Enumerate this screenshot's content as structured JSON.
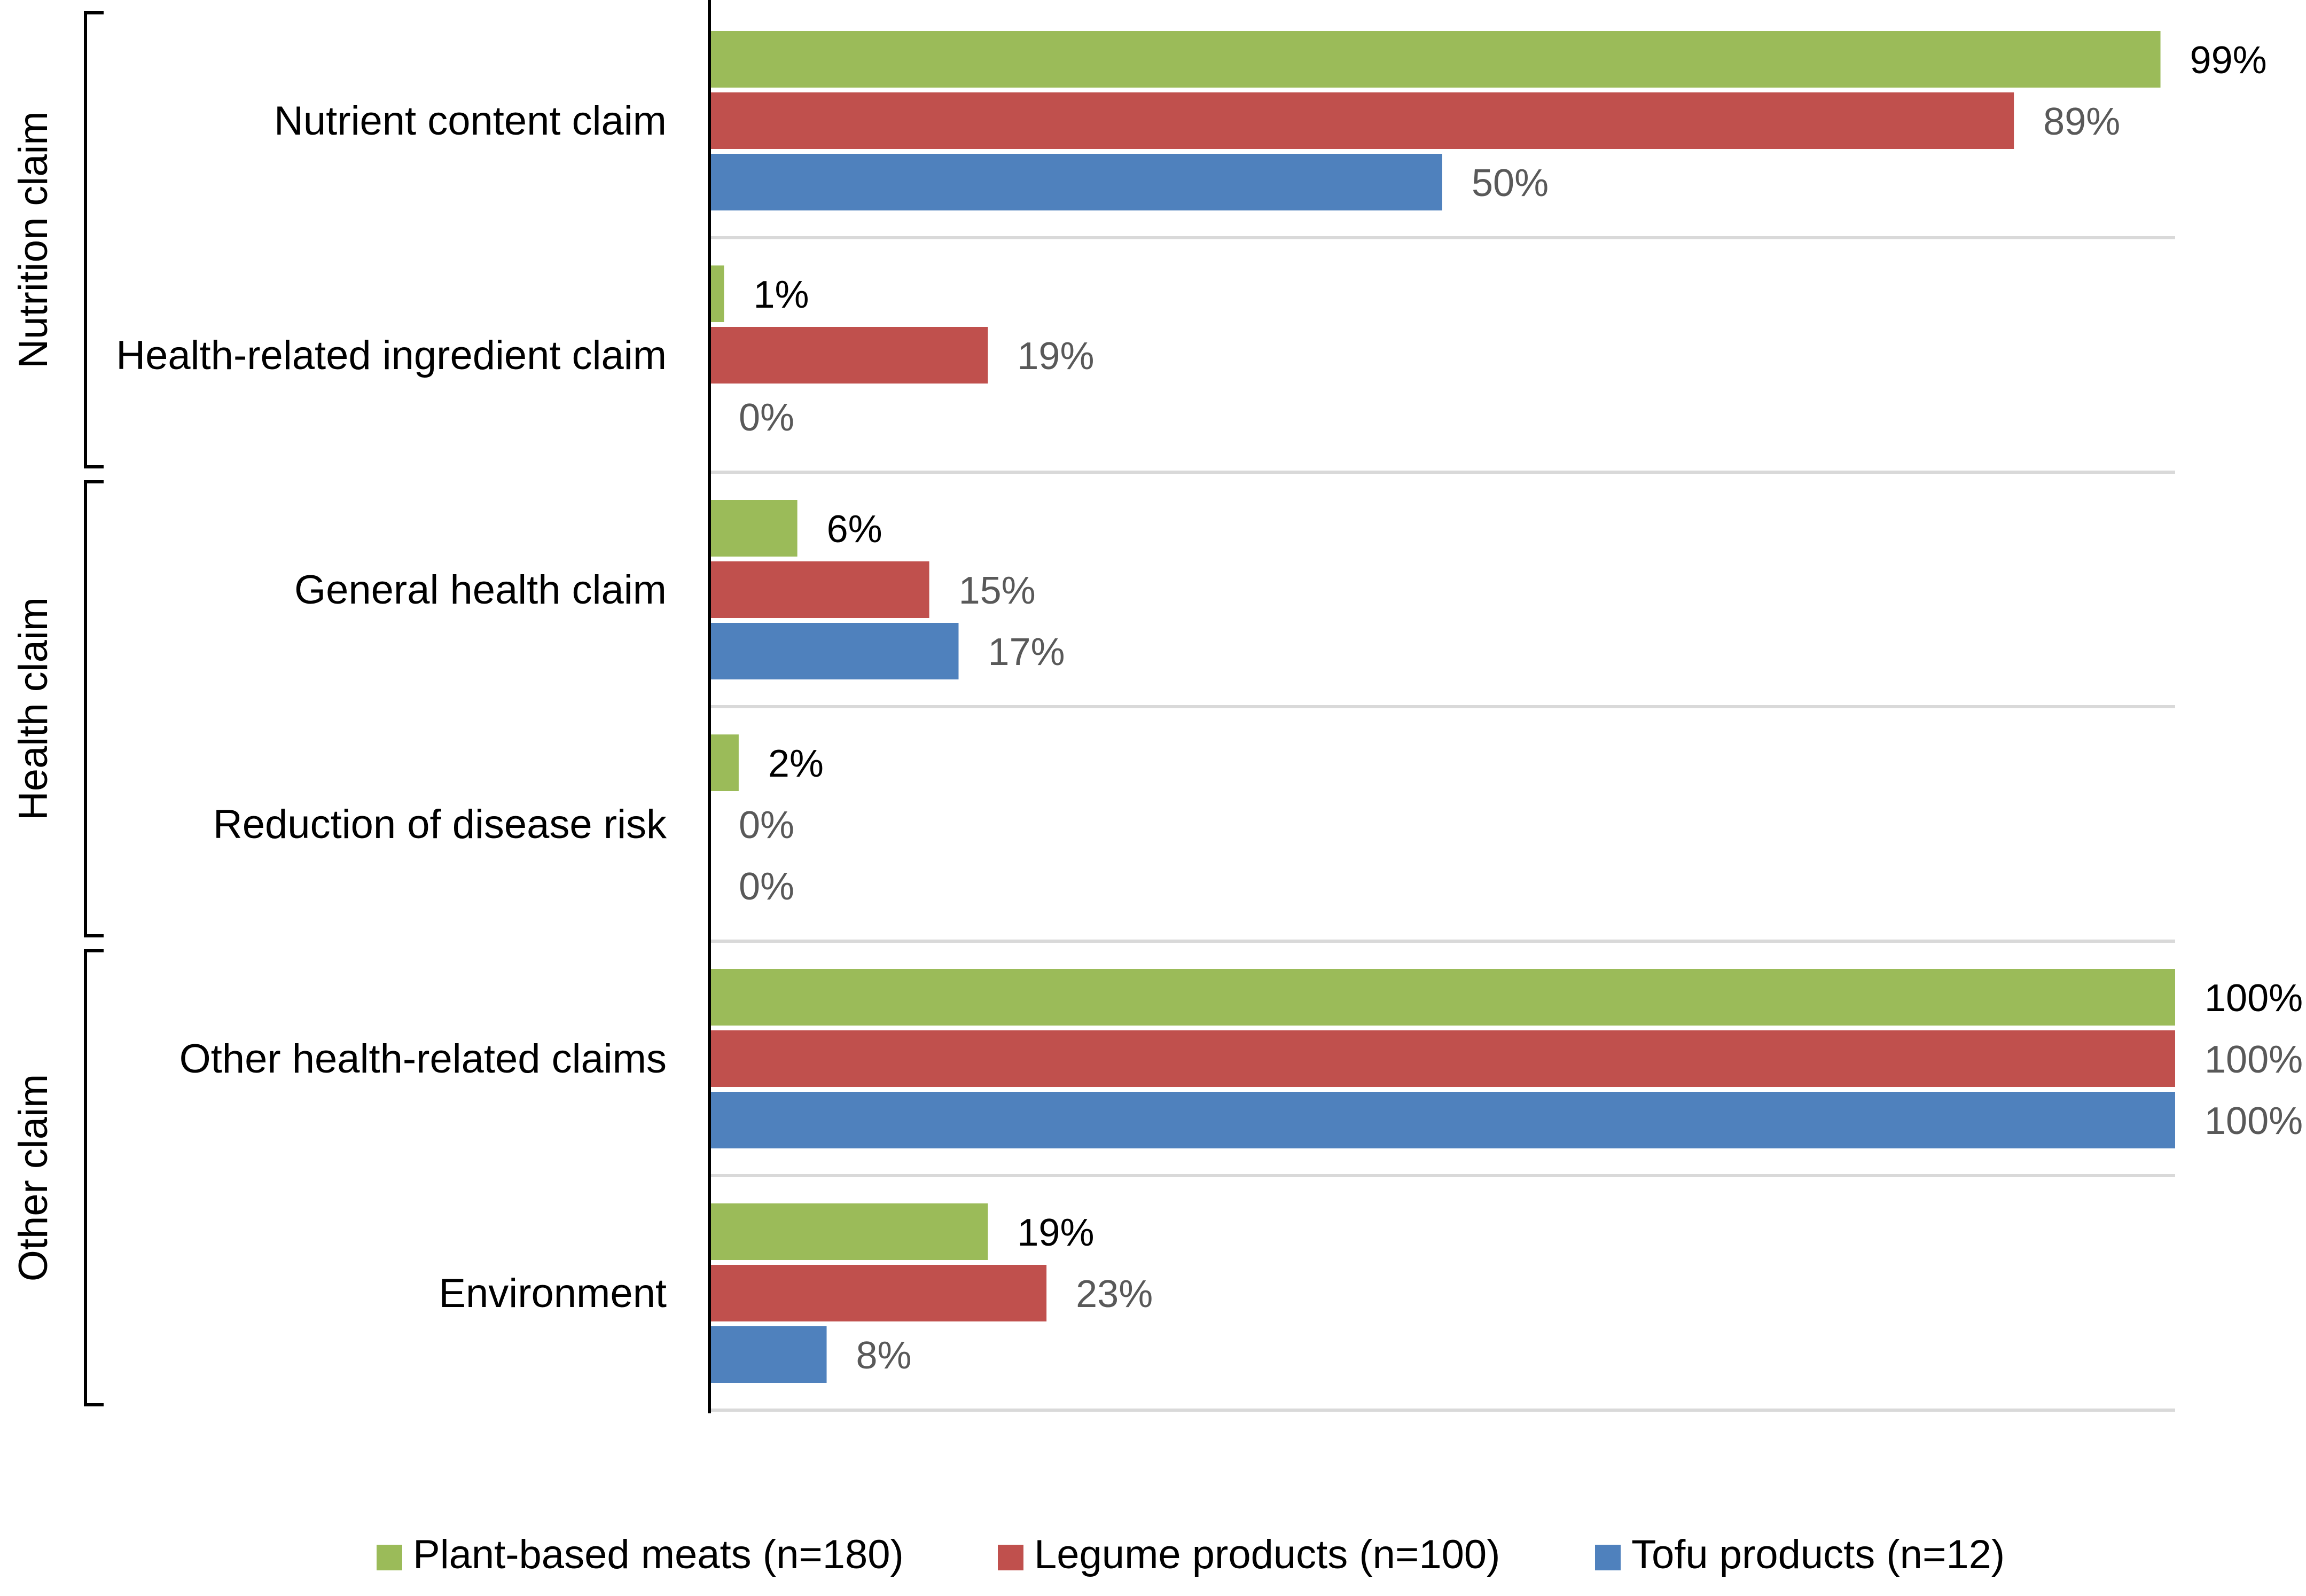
{
  "chart_data": {
    "type": "bar",
    "orientation": "horizontal",
    "title": "",
    "xlabel": "",
    "ylabel": "",
    "xlim": [
      0,
      100
    ],
    "grid": false,
    "legend_position": "bottom",
    "categories": [
      "Nutrient content claim",
      "Health-related ingredient claim",
      "General health claim",
      "Reduction of disease risk",
      "Other health-related claims",
      "Environment"
    ],
    "groups": [
      {
        "label": "Nutrition claim",
        "categories": [
          "Nutrient content claim",
          "Health-related ingredient claim"
        ]
      },
      {
        "label": "Health claim",
        "categories": [
          "General health claim",
          "Reduction of disease risk"
        ]
      },
      {
        "label": "Other claim",
        "categories": [
          "Other health-related claims",
          "Environment"
        ]
      }
    ],
    "series": [
      {
        "name": "Plant-based meats (n=180)",
        "color": "#9bbb59",
        "label_color": "#000000",
        "values": [
          99,
          1,
          6,
          2,
          100,
          19
        ],
        "labels": [
          "99%",
          "1%",
          "6%",
          "2%",
          "100%",
          "19%"
        ]
      },
      {
        "name": "Legume products (n=100)",
        "color": "#c0504d",
        "label_color": "#595959",
        "values": [
          89,
          19,
          15,
          0,
          100,
          23
        ],
        "labels": [
          "89%",
          "19%",
          "15%",
          "0%",
          "100%",
          "23%"
        ]
      },
      {
        "name": "Tofu products (n=12)",
        "color": "#4f81bd",
        "label_color": "#595959",
        "values": [
          50,
          0,
          17,
          0,
          100,
          8
        ],
        "labels": [
          "50%",
          "0%",
          "17%",
          "0%",
          "100%",
          "8%"
        ]
      }
    ]
  }
}
